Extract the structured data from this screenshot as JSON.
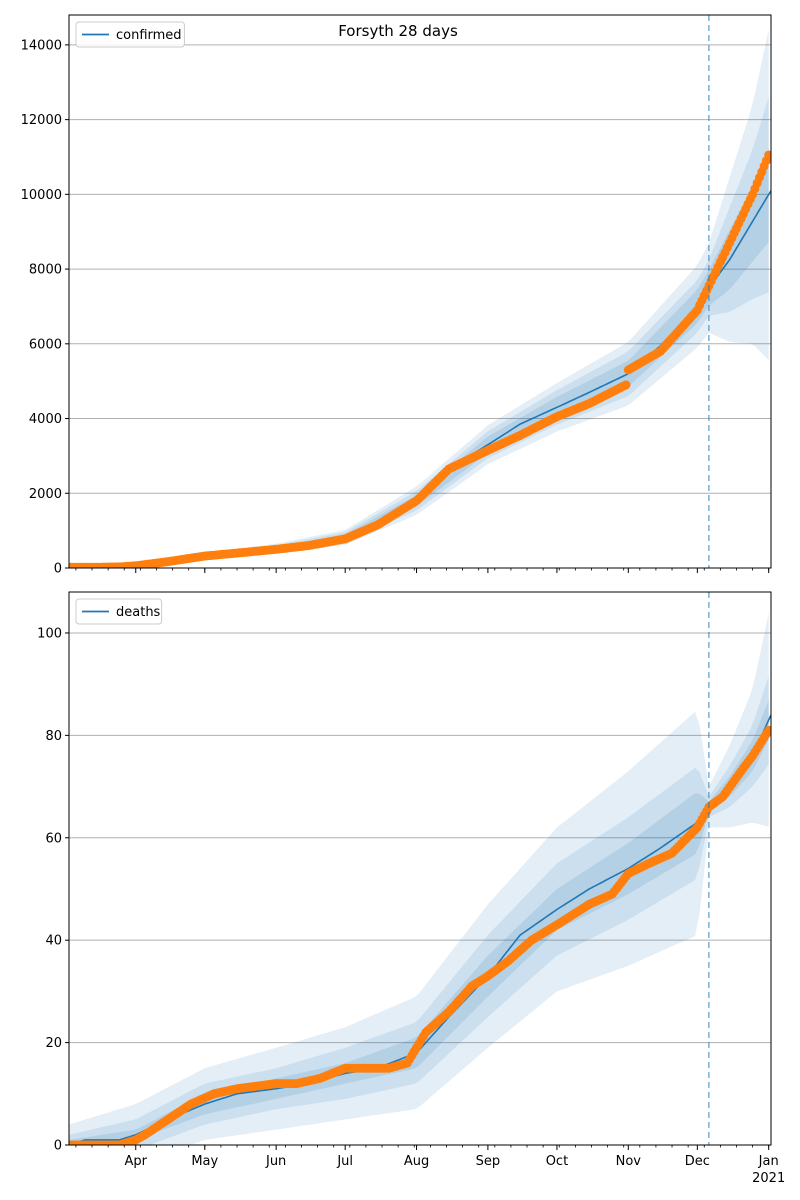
{
  "title": "Forsyth 28 days",
  "colors": {
    "model": "#1f77b4",
    "observed": "#ff7f0e",
    "band": "#1f77b4",
    "forecast_line": "#1f77b4",
    "grid": "#b0b0b0",
    "axis": "#000000"
  },
  "x_tick_labels": [
    "Apr",
    "May",
    "Jun",
    "Jul",
    "Aug",
    "Sep",
    "Oct",
    "Nov",
    "Dec",
    "Jan"
  ],
  "x_tick_sublabel": "2021",
  "chart_data": [
    {
      "type": "line",
      "title": "Forsyth 28 days",
      "legend": [
        "confirmed"
      ],
      "legend_position": "top-left",
      "grid": "horizontal",
      "x_range": [
        "2020-03-03",
        "2021-01-02"
      ],
      "forecast_start": "2020-12-06",
      "ylim": [
        0,
        14800
      ],
      "y_ticks": [
        0,
        2000,
        4000,
        6000,
        8000,
        10000,
        12000,
        14000
      ],
      "series": [
        {
          "name": "confirmed",
          "kind": "model_median",
          "x": [
            "2020-03-03",
            "2020-03-15",
            "2020-04-01",
            "2020-04-15",
            "2020-05-01",
            "2020-05-15",
            "2020-06-01",
            "2020-06-15",
            "2020-07-01",
            "2020-07-15",
            "2020-08-01",
            "2020-08-15",
            "2020-09-01",
            "2020-09-15",
            "2020-10-01",
            "2020-10-15",
            "2020-11-01",
            "2020-11-15",
            "2020-12-01",
            "2020-12-06",
            "2020-12-15",
            "2021-01-02"
          ],
          "values": [
            10,
            20,
            60,
            160,
            320,
            400,
            520,
            620,
            820,
            1150,
            1800,
            2650,
            3300,
            3850,
            4300,
            4700,
            5200,
            5950,
            7000,
            7500,
            8250,
            10100
          ]
        },
        {
          "kind": "observed",
          "x": [
            "2020-03-03",
            "2020-03-15",
            "2020-03-25",
            "2020-04-01",
            "2020-04-15",
            "2020-05-01",
            "2020-05-15",
            "2020-06-01",
            "2020-06-15",
            "2020-07-01",
            "2020-07-15",
            "2020-08-01",
            "2020-08-15",
            "2020-09-01",
            "2020-09-15",
            "2020-10-01",
            "2020-10-15",
            "2020-10-31",
            "2020-11-01",
            "2020-11-15",
            "2020-12-01",
            "2020-12-06",
            "2020-12-15",
            "2020-12-25",
            "2021-01-01"
          ],
          "values": [
            20,
            20,
            30,
            60,
            170,
            320,
            400,
            500,
            600,
            780,
            1150,
            1800,
            2650,
            3150,
            3550,
            4050,
            4400,
            4900,
            5300,
            5800,
            6900,
            7550,
            8700,
            10000,
            11050
          ]
        }
      ],
      "bands": {
        "x": [
          "2020-03-03",
          "2020-04-01",
          "2020-05-01",
          "2020-06-01",
          "2020-07-01",
          "2020-08-01",
          "2020-09-01",
          "2020-10-01",
          "2020-11-01",
          "2020-12-01",
          "2020-12-06",
          "2020-12-15",
          "2020-12-25",
          "2021-01-02"
        ],
        "median": [
          10,
          60,
          320,
          520,
          820,
          1800,
          3300,
          4300,
          5200,
          7000,
          7500,
          8250,
          9200,
          10100
        ],
        "inner_halfwidth": [
          3,
          15,
          30,
          50,
          80,
          150,
          220,
          280,
          350,
          450,
          480,
          800,
          1000,
          1300
        ],
        "mid_halfwidth": [
          6,
          30,
          60,
          90,
          140,
          260,
          360,
          460,
          600,
          700,
          750,
          1400,
          2000,
          2700
        ],
        "outer_halfwidth": [
          10,
          50,
          90,
          130,
          200,
          380,
          520,
          650,
          850,
          1100,
          1200,
          2200,
          3200,
          4600
        ]
      }
    },
    {
      "type": "line",
      "legend": [
        "deaths"
      ],
      "legend_position": "top-left",
      "grid": "horizontal",
      "x_range": [
        "2020-03-03",
        "2021-01-02"
      ],
      "forecast_start": "2020-12-06",
      "ylim": [
        0,
        108
      ],
      "y_ticks": [
        0,
        20,
        40,
        60,
        80,
        100
      ],
      "series": [
        {
          "name": "deaths",
          "kind": "model_median",
          "x": [
            "2020-03-03",
            "2020-03-10",
            "2020-03-25",
            "2020-04-01",
            "2020-04-15",
            "2020-05-01",
            "2020-05-15",
            "2020-06-01",
            "2020-06-15",
            "2020-07-01",
            "2020-07-15",
            "2020-08-01",
            "2020-08-15",
            "2020-09-01",
            "2020-09-15",
            "2020-10-01",
            "2020-10-15",
            "2020-11-01",
            "2020-11-15",
            "2020-12-01",
            "2020-12-06",
            "2020-12-15",
            "2020-12-25",
            "2021-01-02"
          ],
          "values": [
            0,
            1,
            1,
            2,
            5,
            8,
            10,
            11,
            12,
            14,
            15,
            18,
            25,
            33,
            41,
            46,
            50,
            54,
            58,
            63,
            66,
            70,
            76,
            84
          ]
        },
        {
          "kind": "observed",
          "x": [
            "2020-03-03",
            "2020-03-25",
            "2020-04-01",
            "2020-04-05",
            "2020-04-15",
            "2020-04-25",
            "2020-05-05",
            "2020-05-15",
            "2020-06-01",
            "2020-06-10",
            "2020-06-20",
            "2020-07-01",
            "2020-07-10",
            "2020-07-20",
            "2020-07-28",
            "2020-08-05",
            "2020-08-15",
            "2020-08-25",
            "2020-09-01",
            "2020-09-10",
            "2020-09-20",
            "2020-10-01",
            "2020-10-15",
            "2020-10-25",
            "2020-11-01",
            "2020-11-10",
            "2020-11-20",
            "2020-12-01",
            "2020-12-06",
            "2020-12-12",
            "2020-12-20",
            "2020-12-25",
            "2021-01-01"
          ],
          "values": [
            0,
            0,
            1,
            2,
            5,
            8,
            10,
            11,
            12,
            12,
            13,
            15,
            15,
            15,
            16,
            22,
            26,
            31,
            33,
            36,
            40,
            43,
            47,
            49,
            53,
            55,
            57,
            62,
            66,
            68,
            73,
            76,
            81
          ]
        }
      ],
      "bands": {
        "x": [
          "2020-03-03",
          "2020-04-01",
          "2020-05-01",
          "2020-06-01",
          "2020-07-01",
          "2020-08-01",
          "2020-09-01",
          "2020-10-01",
          "2020-11-01",
          "2020-12-01",
          "2020-12-06",
          "2020-12-15",
          "2020-12-25",
          "2021-01-02"
        ],
        "median": [
          0,
          2,
          8,
          11,
          14,
          18,
          33,
          46,
          54,
          63,
          66,
          70,
          76,
          84
        ],
        "inner_halfwidth": [
          1,
          1,
          2,
          2,
          2,
          3,
          4,
          4,
          5,
          6,
          1,
          2,
          3,
          4
        ],
        "mid_halfwidth": [
          2,
          3,
          4,
          4,
          5,
          6,
          8,
          9,
          10,
          11,
          2,
          4,
          6,
          9
        ],
        "outer_halfwidth": [
          4,
          6,
          7,
          8,
          9,
          11,
          14,
          16,
          19,
          22,
          4,
          8,
          13,
          22
        ]
      }
    }
  ]
}
